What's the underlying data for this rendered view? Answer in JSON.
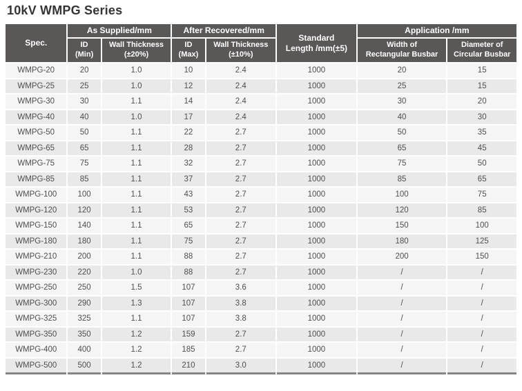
{
  "title": "10kV WMPG Series",
  "colors": {
    "header_bg": "#5a5757",
    "header_text": "#ffffff",
    "row_light": "#f5f5f5",
    "row_dark": "#e9e9e9",
    "body_text": "#4e4e4e",
    "bottom_border": "#858585",
    "title_text": "#353535"
  },
  "table": {
    "col_keys": [
      "spec",
      "id_min",
      "wall_thickness_20",
      "id_max",
      "wall_thickness_10",
      "standard_length",
      "width_rectangular_busbar",
      "diameter_circular_busbar"
    ],
    "header": {
      "spec": "Spec.",
      "as_supplied": "As Supplied/mm",
      "after_recovered": "After Recovered/mm",
      "standard_length": "Standard\nLength /mm(±5)",
      "application": "Application /mm",
      "id_min": "ID\n(Min)",
      "wall_thickness_20": "Wall Thickness\n(±20%)",
      "id_max": "ID\n(Max)",
      "wall_thickness_10": "Wall Thickness\n(±10%)",
      "width_rectangular_busbar": "Width of\nRectangular Busbar",
      "diameter_circular_busbar": "Diameter of\nCircular Busbar"
    },
    "rows": [
      [
        "WMPG-20",
        "20",
        "1.0",
        "10",
        "2.4",
        "1000",
        "20",
        "15"
      ],
      [
        "WMPG-25",
        "25",
        "1.0",
        "12",
        "2.4",
        "1000",
        "25",
        "15"
      ],
      [
        "WMPG-30",
        "30",
        "1.1",
        "14",
        "2.4",
        "1000",
        "30",
        "20"
      ],
      [
        "WMPG-40",
        "40",
        "1.0",
        "17",
        "2.4",
        "1000",
        "40",
        "30"
      ],
      [
        "WMPG-50",
        "50",
        "1.1",
        "22",
        "2.7",
        "1000",
        "50",
        "35"
      ],
      [
        "WMPG-65",
        "65",
        "1.1",
        "28",
        "2.7",
        "1000",
        "65",
        "45"
      ],
      [
        "WMPG-75",
        "75",
        "1.1",
        "32",
        "2.7",
        "1000",
        "75",
        "50"
      ],
      [
        "WMPG-85",
        "85",
        "1.1",
        "37",
        "2.7",
        "1000",
        "85",
        "65"
      ],
      [
        "WMPG-100",
        "100",
        "1.1",
        "43",
        "2.7",
        "1000",
        "100",
        "75"
      ],
      [
        "WMPG-120",
        "120",
        "1.1",
        "53",
        "2.7",
        "1000",
        "120",
        "85"
      ],
      [
        "WMPG-150",
        "140",
        "1.1",
        "65",
        "2.7",
        "1000",
        "150",
        "100"
      ],
      [
        "WMPG-180",
        "180",
        "1.1",
        "75",
        "2.7",
        "1000",
        "180",
        "125"
      ],
      [
        "WMPG-210",
        "200",
        "1.1",
        "88",
        "2.7",
        "1000",
        "200",
        "150"
      ],
      [
        "WMPG-230",
        "220",
        "1.0",
        "88",
        "2.7",
        "1000",
        "/",
        "/"
      ],
      [
        "WMPG-250",
        "250",
        "1.5",
        "107",
        "3.6",
        "1000",
        "/",
        "/"
      ],
      [
        "WMPG-300",
        "290",
        "1.3",
        "107",
        "3.8",
        "1000",
        "/",
        "/"
      ],
      [
        "WMPG-325",
        "325",
        "1.1",
        "107",
        "3.8",
        "1000",
        "/",
        "/"
      ],
      [
        "WMPG-350",
        "350",
        "1.2",
        "159",
        "2.7",
        "1000",
        "/",
        "/"
      ],
      [
        "WMPG-400",
        "400",
        "1.2",
        "185",
        "2.7",
        "1000",
        "/",
        "/"
      ],
      [
        "WMPG-500",
        "500",
        "1.2",
        "210",
        "3.0",
        "1000",
        "/",
        "/"
      ]
    ]
  }
}
